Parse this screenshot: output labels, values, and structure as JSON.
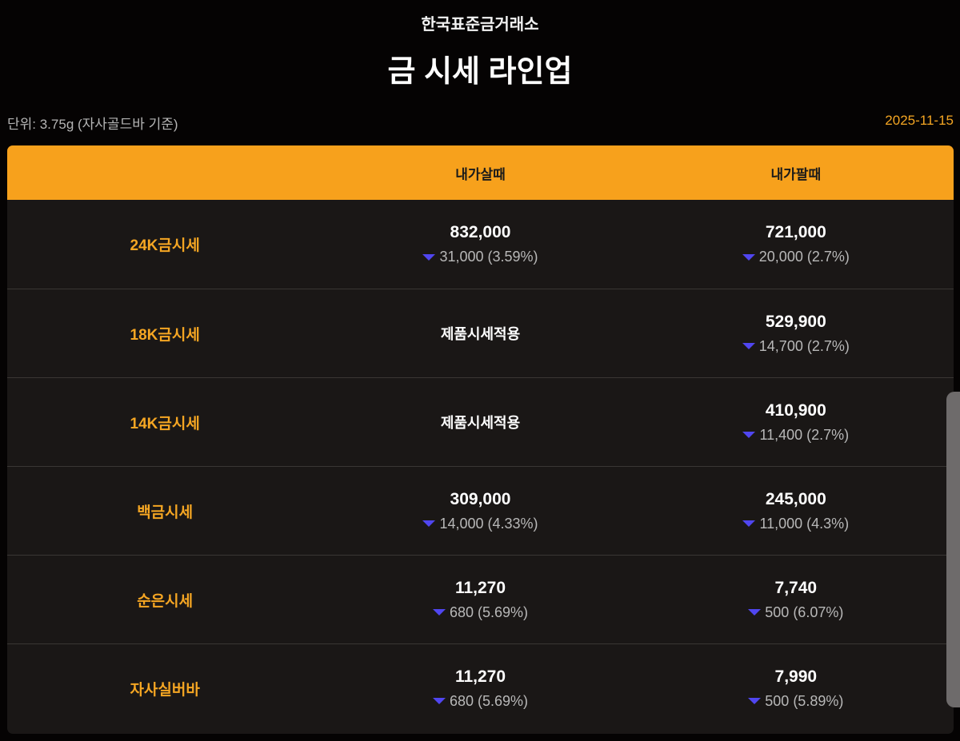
{
  "header": {
    "brand": "한국표준금거래소",
    "title": "금 시세 라인업"
  },
  "meta": {
    "unit": "단위: 3.75g (자사골드바 기준)",
    "date": "2025-11-15"
  },
  "table": {
    "columns": [
      "",
      "내가살때",
      "내가팔때"
    ],
    "rows": [
      {
        "label": "24K금시세",
        "buy": {
          "price": "832,000",
          "change": "31,000 (3.59%)"
        },
        "sell": {
          "price": "721,000",
          "change": "20,000 (2.7%)"
        }
      },
      {
        "label": "18K금시세",
        "buy": {
          "note": "제품시세적용"
        },
        "sell": {
          "price": "529,900",
          "change": "14,700 (2.7%)"
        }
      },
      {
        "label": "14K금시세",
        "buy": {
          "note": "제품시세적용"
        },
        "sell": {
          "price": "410,900",
          "change": "11,400 (2.7%)"
        }
      },
      {
        "label": "백금시세",
        "buy": {
          "price": "309,000",
          "change": "14,000 (4.33%)"
        },
        "sell": {
          "price": "245,000",
          "change": "11,000 (4.3%)"
        }
      },
      {
        "label": "순은시세",
        "buy": {
          "price": "11,270",
          "change": "680 (5.69%)"
        },
        "sell": {
          "price": "7,740",
          "change": "500 (6.07%)"
        }
      },
      {
        "label": "자사실버바",
        "buy": {
          "price": "11,270",
          "change": "680 (5.69%)"
        },
        "sell": {
          "price": "7,990",
          "change": "500 (5.89%)"
        }
      }
    ]
  },
  "icons": {
    "change": "triangle-down-icon"
  },
  "colors": {
    "accent": "#f7a11c",
    "down": "#5046f0",
    "label": "#f5a623"
  }
}
